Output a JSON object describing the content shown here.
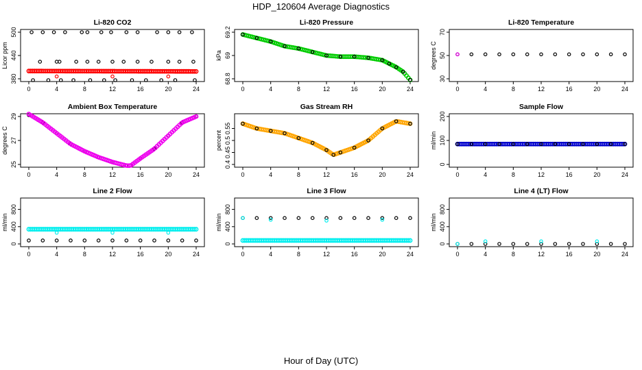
{
  "title": "HDP_120604  Average Diagnostics",
  "xlabel": "Hour of Day (UTC)",
  "colors": {
    "black": "#000000",
    "red": "#ff0000",
    "green": "#00cc00",
    "magenta": "#ee00ee",
    "orange": "#ffa500",
    "blue": "#0000cc",
    "cyan": "#00eeee"
  },
  "chart_data": [
    {
      "type": "scatter",
      "title": "Li-820 CO2",
      "ylabel": "Licor ppm",
      "xlim": [
        0,
        24
      ],
      "xticks": [
        0,
        4,
        8,
        12,
        16,
        20,
        24
      ],
      "ylim": [
        380,
        500
      ],
      "yticks": [
        380,
        440,
        500
      ],
      "series": [
        {
          "name": "avg",
          "color": "red",
          "style": "band",
          "x": [
            0,
            24
          ],
          "y": [
            400,
            399
          ]
        },
        {
          "name": "pts",
          "color": "black",
          "style": "points",
          "x": [
            0.4,
            2,
            3.6,
            5.2,
            7.6,
            8.4,
            10.4,
            11.8,
            14,
            15.6,
            18.4,
            20,
            21.6,
            23.4
          ],
          "y": [
            500,
            500,
            500,
            500,
            500,
            500,
            500,
            500,
            500,
            500,
            500,
            500,
            500,
            500
          ]
        },
        {
          "name": "pts2",
          "color": "black",
          "style": "points",
          "x": [
            1.6,
            4,
            4.4,
            6.8,
            8.4,
            10,
            12,
            13.6,
            15.6,
            17.6,
            20,
            21.6,
            23.6
          ],
          "y": [
            424,
            424,
            424,
            424,
            424,
            424,
            424,
            424,
            424,
            424,
            424,
            424,
            424
          ]
        },
        {
          "name": "pts3",
          "color": "black",
          "style": "points",
          "x": [
            0.6,
            2.8,
            4.6,
            6.4,
            8.8,
            10.8,
            12.4,
            14.8,
            16.8,
            19,
            21,
            23.8
          ],
          "y": [
            374,
            374,
            374,
            374,
            374,
            374,
            374,
            374,
            374,
            374,
            374,
            374
          ]
        },
        {
          "name": "out",
          "color": "red",
          "style": "points",
          "x": [
            4,
            12,
            20
          ],
          "y": [
            386,
            386,
            386
          ]
        }
      ]
    },
    {
      "type": "scatter",
      "title": "Li-820 Pressure",
      "ylabel": "kPa",
      "xlim": [
        0,
        24
      ],
      "xticks": [
        0,
        4,
        8,
        12,
        16,
        20,
        24
      ],
      "ylim": [
        68.8,
        69.2
      ],
      "yticks": [
        68.8,
        69.0,
        69.2
      ],
      "series": [
        {
          "name": "band",
          "color": "green",
          "style": "band",
          "x": [
            0,
            2,
            4,
            6,
            8,
            10,
            12,
            14,
            16,
            18,
            20,
            21,
            22,
            23,
            24
          ],
          "y": [
            69.18,
            69.15,
            69.12,
            69.08,
            69.06,
            69.03,
            69.0,
            68.99,
            68.99,
            68.98,
            68.96,
            68.93,
            68.9,
            68.86,
            68.79
          ]
        },
        {
          "name": "pts",
          "color": "black",
          "style": "points",
          "x": [
            0,
            2,
            4,
            6,
            8,
            10,
            12,
            14,
            16,
            18,
            20,
            21,
            22,
            23,
            24
          ],
          "y": [
            69.18,
            69.15,
            69.12,
            69.08,
            69.06,
            69.03,
            69.0,
            68.99,
            68.99,
            68.98,
            68.96,
            68.93,
            68.9,
            68.86,
            68.79
          ]
        }
      ]
    },
    {
      "type": "scatter",
      "title": "Li-820 Temperature",
      "ylabel": "degrees C",
      "xlim": [
        0,
        24
      ],
      "xticks": [
        0,
        4,
        8,
        12,
        16,
        20,
        24
      ],
      "ylim": [
        30,
        70
      ],
      "yticks": [
        30,
        50,
        70
      ],
      "series": [
        {
          "name": "pts",
          "color": "black",
          "style": "points",
          "x": [
            0,
            2,
            4,
            6,
            8,
            10,
            12,
            14,
            16,
            18,
            20,
            22,
            24
          ],
          "y": [
            51,
            51,
            51,
            51,
            51,
            51,
            51,
            51,
            51,
            51,
            51,
            51,
            51
          ]
        },
        {
          "name": "first",
          "color": "magenta",
          "style": "points",
          "x": [
            0
          ],
          "y": [
            51
          ]
        }
      ]
    },
    {
      "type": "scatter",
      "title": "Ambient Box Temperature",
      "ylabel": "degrees C",
      "xlim": [
        0,
        24
      ],
      "xticks": [
        0,
        4,
        8,
        12,
        16,
        20,
        24
      ],
      "ylim": [
        25,
        29
      ],
      "yticks": [
        25,
        27,
        29
      ],
      "series": [
        {
          "name": "pts",
          "color": "black",
          "style": "points",
          "x": [
            0,
            2,
            4,
            6,
            8,
            10,
            12,
            14,
            14.6,
            16,
            18,
            20,
            22,
            24
          ],
          "y": [
            29.2,
            28.5,
            27.6,
            26.7,
            26.1,
            25.6,
            25.2,
            24.9,
            24.9,
            25.5,
            26.3,
            27.4,
            28.5,
            29.0
          ]
        },
        {
          "name": "mag",
          "color": "magenta",
          "style": "band",
          "x": [
            0,
            2,
            4,
            6,
            8,
            10,
            12,
            14,
            14.6,
            16,
            18,
            20,
            22,
            24
          ],
          "y": [
            29.2,
            28.5,
            27.6,
            26.7,
            26.1,
            25.6,
            25.2,
            24.9,
            24.9,
            25.5,
            26.3,
            27.4,
            28.5,
            29.0
          ]
        }
      ]
    },
    {
      "type": "scatter",
      "title": "Gas Stream RH",
      "ylabel": "percent",
      "xlim": [
        0,
        24
      ],
      "xticks": [
        0,
        4,
        8,
        12,
        16,
        20,
        24
      ],
      "ylim": [
        0.4,
        0.6
      ],
      "yticks": [
        0.4,
        0.45,
        0.5,
        0.55
      ],
      "series": [
        {
          "name": "band",
          "color": "orange",
          "style": "band",
          "x": [
            0,
            2,
            4,
            6,
            8,
            10,
            12,
            13,
            14,
            16,
            18,
            20,
            22,
            24
          ],
          "y": [
            0.57,
            0.55,
            0.54,
            0.53,
            0.51,
            0.49,
            0.46,
            0.44,
            0.45,
            0.47,
            0.5,
            0.55,
            0.58,
            0.57
          ]
        },
        {
          "name": "pts",
          "color": "black",
          "style": "points",
          "x": [
            0,
            2,
            4,
            6,
            8,
            10,
            12,
            13,
            14,
            16,
            18,
            20,
            22,
            24
          ],
          "y": [
            0.57,
            0.55,
            0.54,
            0.53,
            0.51,
            0.49,
            0.46,
            0.44,
            0.45,
            0.47,
            0.5,
            0.55,
            0.58,
            0.57
          ]
        }
      ]
    },
    {
      "type": "scatter",
      "title": "Sample Flow",
      "ylabel": "ml/min",
      "xlim": [
        0,
        24
      ],
      "xticks": [
        0,
        4,
        8,
        12,
        16,
        20,
        24
      ],
      "ylim": [
        0,
        200
      ],
      "yticks": [
        0,
        100,
        200
      ],
      "series": [
        {
          "name": "band",
          "color": "blue",
          "style": "band",
          "x": [
            0,
            24
          ],
          "y": [
            85,
            85
          ]
        },
        {
          "name": "pts",
          "color": "black",
          "style": "points",
          "x": [
            0,
            2,
            4,
            6,
            8,
            10,
            12,
            14,
            16,
            18,
            20,
            22,
            24
          ],
          "y": [
            85,
            85,
            85,
            85,
            85,
            85,
            85,
            85,
            85,
            85,
            85,
            85,
            85
          ]
        }
      ]
    },
    {
      "type": "scatter",
      "title": "Line 2 Flow",
      "ylabel": "ml/min",
      "xlim": [
        0,
        24
      ],
      "xticks": [
        0,
        4,
        8,
        12,
        16,
        20,
        24
      ],
      "ylim": [
        0,
        1000
      ],
      "yticks": [
        0,
        400,
        800
      ],
      "series": [
        {
          "name": "line2",
          "color": "cyan",
          "style": "band",
          "x": [
            0,
            24
          ],
          "y": [
            340,
            340
          ]
        },
        {
          "name": "base",
          "color": "black",
          "style": "points",
          "x": [
            0,
            2,
            4,
            6,
            8,
            10,
            12,
            14,
            16,
            18,
            20,
            22,
            24
          ],
          "y": [
            80,
            80,
            80,
            80,
            80,
            80,
            80,
            80,
            80,
            80,
            80,
            80,
            80
          ]
        },
        {
          "name": "dips",
          "color": "cyan",
          "style": "points",
          "x": [
            4,
            12,
            20
          ],
          "y": [
            260,
            260,
            260
          ]
        }
      ]
    },
    {
      "type": "scatter",
      "title": "Line 3 Flow",
      "ylabel": "ml/min",
      "xlim": [
        0,
        24
      ],
      "xticks": [
        0,
        4,
        8,
        12,
        16,
        20,
        24
      ],
      "ylim": [
        0,
        1000
      ],
      "yticks": [
        0,
        400,
        800
      ],
      "series": [
        {
          "name": "line3",
          "color": "black",
          "style": "points",
          "x": [
            0,
            2,
            4,
            6,
            8,
            10,
            12,
            14,
            16,
            18,
            20,
            22,
            24
          ],
          "y": [
            600,
            600,
            600,
            600,
            600,
            600,
            600,
            600,
            600,
            600,
            600,
            600,
            600
          ]
        },
        {
          "name": "low",
          "color": "cyan",
          "style": "band",
          "x": [
            0,
            24
          ],
          "y": [
            80,
            80
          ]
        },
        {
          "name": "dips",
          "color": "cyan",
          "style": "points",
          "x": [
            0,
            4,
            12,
            20
          ],
          "y": [
            600,
            560,
            540,
            560
          ]
        }
      ]
    },
    {
      "type": "scatter",
      "title": "Line 4 (LT) Flow",
      "ylabel": "ml/min",
      "xlim": [
        0,
        24
      ],
      "xticks": [
        0,
        4,
        8,
        12,
        16,
        20,
        24
      ],
      "ylim": [
        0,
        1000
      ],
      "yticks": [
        0,
        400,
        800
      ],
      "series": [
        {
          "name": "pts",
          "color": "black",
          "style": "points",
          "x": [
            0,
            2,
            4,
            6,
            8,
            10,
            12,
            14,
            16,
            18,
            20,
            22,
            24
          ],
          "y": [
            0,
            0,
            0,
            0,
            0,
            0,
            0,
            0,
            0,
            0,
            0,
            0,
            0
          ]
        },
        {
          "name": "spikes",
          "color": "cyan",
          "style": "points",
          "x": [
            0,
            4,
            12,
            20
          ],
          "y": [
            0,
            60,
            60,
            60
          ]
        }
      ]
    }
  ]
}
